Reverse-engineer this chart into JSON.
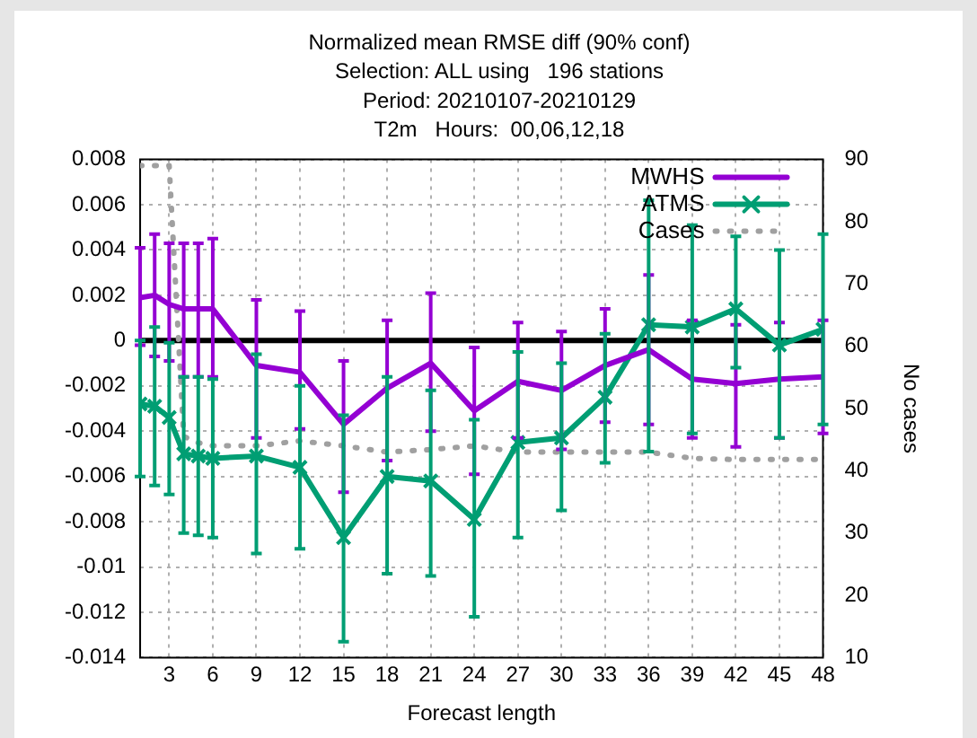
{
  "chart_data": {
    "type": "line",
    "title": "Normalized mean RMSE diff (90% conf)",
    "subtitle": "Selection: ALL using   196 stations\nPeriod: 20210107-20210129\nT2m   Hours:  00,06,12,18",
    "xlabel": "Forecast length",
    "y2label": "No cases",
    "x": [
      1,
      2,
      3,
      4,
      5,
      6,
      9,
      12,
      15,
      18,
      21,
      24,
      27,
      30,
      33,
      36,
      39,
      42,
      45,
      48
    ],
    "series": [
      {
        "name": "MWHS",
        "color": "#9400d3",
        "marker": "none",
        "values": [
          0.0019,
          0.002,
          0.0016,
          0.0014,
          0.0014,
          0.0014,
          -0.0011,
          -0.0014,
          -0.0037,
          -0.0021,
          -0.001,
          -0.0031,
          -0.0018,
          -0.0022,
          -0.0011,
          -0.0004,
          -0.0017,
          -0.0019,
          -0.0017,
          -0.0016
        ],
        "errors": [
          [
            -0.0002,
            0.0041
          ],
          [
            -0.0007,
            0.0047
          ],
          [
            -0.0009,
            0.0043
          ],
          [
            -0.0016,
            0.0043
          ],
          [
            -0.0016,
            0.0043
          ],
          [
            -0.0016,
            0.0045
          ],
          [
            -0.0043,
            0.0018
          ],
          [
            -0.0039,
            0.0013
          ],
          [
            -0.0067,
            -0.0009
          ],
          [
            -0.0053,
            0.0009
          ],
          [
            -0.004,
            0.0021
          ],
          [
            -0.0059,
            -0.0003
          ],
          [
            -0.0043,
            0.0008
          ],
          [
            -0.0048,
            0.0004
          ],
          [
            -0.0036,
            0.0014
          ],
          [
            -0.0037,
            0.0029
          ],
          [
            -0.0043,
            0.0009
          ],
          [
            -0.0047,
            0.0007
          ],
          [
            -0.0043,
            0.0008
          ],
          [
            -0.0041,
            0.0009
          ]
        ]
      },
      {
        "name": "ATMS",
        "color": "#009e73",
        "marker": "cross",
        "values": [
          -0.0028,
          -0.0029,
          -0.0034,
          -0.005,
          -0.0051,
          -0.0052,
          -0.0051,
          -0.0056,
          -0.0087,
          -0.006,
          -0.0062,
          -0.0079,
          -0.0045,
          -0.0043,
          -0.0025,
          0.0007,
          0.0006,
          0.0014,
          -0.0002,
          0.0005
        ],
        "errors": [
          [
            -0.006,
            0
          ],
          [
            -0.0064,
            0.0006
          ],
          [
            -0.0068,
            -0.0001
          ],
          [
            -0.0085,
            -0.0016
          ],
          [
            -0.0086,
            -0.0016
          ],
          [
            -0.0087,
            -0.0017
          ],
          [
            -0.0094,
            -0.0006
          ],
          [
            -0.0092,
            -0.002
          ],
          [
            -0.0133,
            -0.0033
          ],
          [
            -0.0103,
            -0.0016
          ],
          [
            -0.0104,
            -0.0022
          ],
          [
            -0.0122,
            -0.0035
          ],
          [
            -0.0087,
            -0.0005
          ],
          [
            -0.0075,
            -0.001
          ],
          [
            -0.0054,
            0.0003
          ],
          [
            -0.0049,
            0.0062
          ],
          [
            -0.0041,
            0.0051
          ],
          [
            -0.0012,
            0.0046
          ],
          [
            -0.0043,
            0.004
          ],
          [
            -0.0037,
            0.0047
          ]
        ]
      },
      {
        "name": "Cases",
        "color": "#a0a0a0",
        "marker": "none",
        "line_style": "dotted",
        "axis": "y2",
        "values": [
          89,
          89,
          89,
          45.5,
          44.5,
          44,
          44,
          44.8,
          44,
          43,
          43.4,
          44,
          43,
          43,
          43,
          43,
          42,
          41.8,
          41.8,
          41.8
        ]
      }
    ],
    "xlim": [
      1,
      48
    ],
    "xticks": [
      3,
      6,
      9,
      12,
      15,
      18,
      21,
      24,
      27,
      30,
      33,
      36,
      39,
      42,
      45,
      48
    ],
    "ylim": [
      -0.014,
      0.008
    ],
    "yticks": [
      -0.014,
      -0.012,
      -0.01,
      -0.008,
      -0.006,
      -0.004,
      -0.002,
      0,
      0.002,
      0.004,
      0.006,
      0.008
    ],
    "y2lim": [
      10,
      90
    ],
    "y2ticks": [
      10,
      20,
      30,
      40,
      50,
      60,
      70,
      80,
      90
    ],
    "ref_lines": [
      {
        "axis": "y",
        "value": 0,
        "color": "#000000"
      }
    ],
    "grid": true,
    "legend": "top right"
  }
}
